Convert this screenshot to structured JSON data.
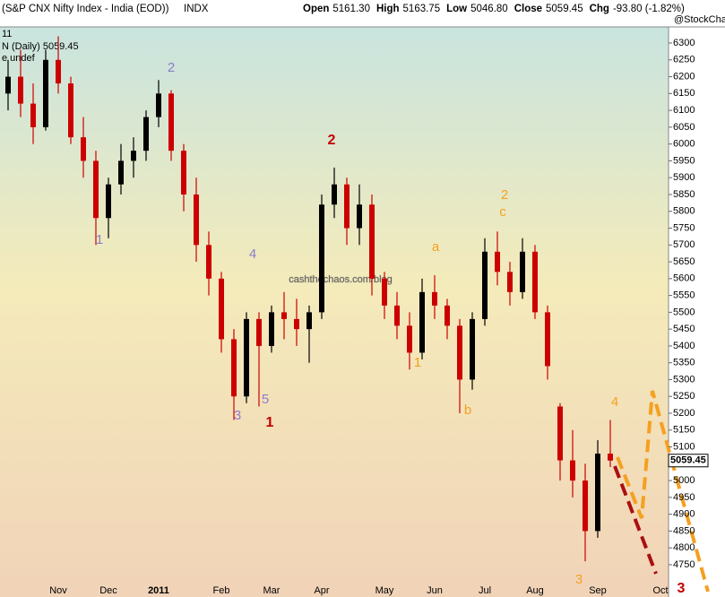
{
  "header": {
    "title": "(S&P CNX Nifty Index - India (EOD))",
    "exchange": "INDX",
    "quote": [
      {
        "label": "Open",
        "value": "5161.30"
      },
      {
        "label": "High",
        "value": "5163.75"
      },
      {
        "label": "Low",
        "value": "5046.80"
      },
      {
        "label": "Close",
        "value": "5059.45"
      },
      {
        "label": "Chg",
        "value": "-93.80 (-1.82%)"
      }
    ],
    "credit": "@StockCharts.com",
    "inset": "N (Daily) 5059.45",
    "inset_sub": "e undef",
    "corner": "11",
    "watermark": "cashthechaos.com/blog"
  },
  "annotations": [
    "1",
    "2",
    "3",
    "4",
    "5",
    "1",
    "2",
    "1",
    "a",
    "b",
    "c",
    "2",
    "4",
    "3",
    "3"
  ],
  "chart_data": {
    "type": "candlestick",
    "categories": [
      null,
      null,
      null,
      null,
      "Nov",
      null,
      null,
      null,
      "Dec",
      null,
      null,
      null,
      "2011",
      null,
      null,
      null,
      null,
      "Feb",
      null,
      null,
      null,
      "Mar",
      null,
      null,
      null,
      "Apr",
      null,
      null,
      null,
      null,
      "May",
      null,
      null,
      null,
      "Jun",
      null,
      null,
      null,
      "Jul",
      null,
      null,
      null,
      "Aug",
      null,
      null,
      null,
      null,
      "Sep",
      null,
      null,
      null,
      null,
      "Oct"
    ],
    "open": [
      6150,
      6200,
      6120,
      6050,
      6250,
      6180,
      6020,
      5950,
      5780,
      5880,
      5950,
      5980,
      6080,
      6150,
      5980,
      5850,
      5700,
      5600,
      5420,
      5250,
      5480,
      5400,
      5500,
      5480,
      5450,
      5500,
      5820,
      5880,
      5750,
      5820,
      5600,
      5520,
      5460,
      5380,
      5560,
      5520,
      5460,
      5300,
      5480,
      5680,
      5620,
      5560,
      5680,
      5500,
      5220,
      5060,
      5000,
      4850,
      5080,
      null,
      null,
      null,
      null
    ],
    "high": [
      6250,
      6280,
      6180,
      6280,
      6320,
      6200,
      6080,
      5980,
      5900,
      6000,
      6020,
      6100,
      6190,
      6160,
      6000,
      5900,
      5740,
      5620,
      5450,
      5500,
      5500,
      5520,
      5560,
      5540,
      5520,
      5850,
      5930,
      5900,
      5880,
      5850,
      5620,
      5560,
      5500,
      5600,
      5610,
      5540,
      5480,
      5500,
      5720,
      5740,
      5650,
      5720,
      5700,
      5520,
      5230,
      5150,
      5050,
      5120,
      5180,
      null,
      null,
      null,
      null
    ],
    "low": [
      6100,
      6080,
      6000,
      6040,
      6150,
      6000,
      5900,
      5700,
      5720,
      5850,
      5900,
      5950,
      6050,
      5950,
      5800,
      5650,
      5550,
      5380,
      5180,
      5230,
      5220,
      5380,
      5420,
      5400,
      5350,
      5480,
      5780,
      5700,
      5700,
      5550,
      5480,
      5420,
      5330,
      5360,
      5480,
      5420,
      5200,
      5270,
      5460,
      5580,
      5520,
      5540,
      5480,
      5300,
      5000,
      4950,
      4760,
      4830,
      5040,
      null,
      null,
      null,
      null
    ],
    "close": [
      6200,
      6120,
      6050,
      6250,
      6180,
      6020,
      5950,
      5780,
      5880,
      5950,
      5980,
      6080,
      6150,
      5980,
      5850,
      5700,
      5600,
      5420,
      5250,
      5480,
      5400,
      5500,
      5480,
      5450,
      5500,
      5820,
      5880,
      5750,
      5820,
      5600,
      5520,
      5460,
      5380,
      5560,
      5520,
      5460,
      5300,
      5480,
      5680,
      5620,
      5560,
      5680,
      5500,
      5340,
      5060,
      5000,
      4850,
      5080,
      5059.45,
      null,
      null,
      null,
      null
    ],
    "up_color": "#000000",
    "down_color": "#cc0000",
    "ylim": [
      4670,
      6348
    ],
    "yticks": [
      4750,
      4800,
      4850,
      4900,
      4950,
      5000,
      5050,
      5100,
      5150,
      5200,
      5250,
      5300,
      5350,
      5400,
      5450,
      5500,
      5550,
      5600,
      5650,
      5700,
      5750,
      5800,
      5850,
      5900,
      5950,
      6000,
      6050,
      6100,
      6150,
      6200,
      6250,
      6300
    ],
    "last_price": 5059.45,
    "grid": false
  }
}
